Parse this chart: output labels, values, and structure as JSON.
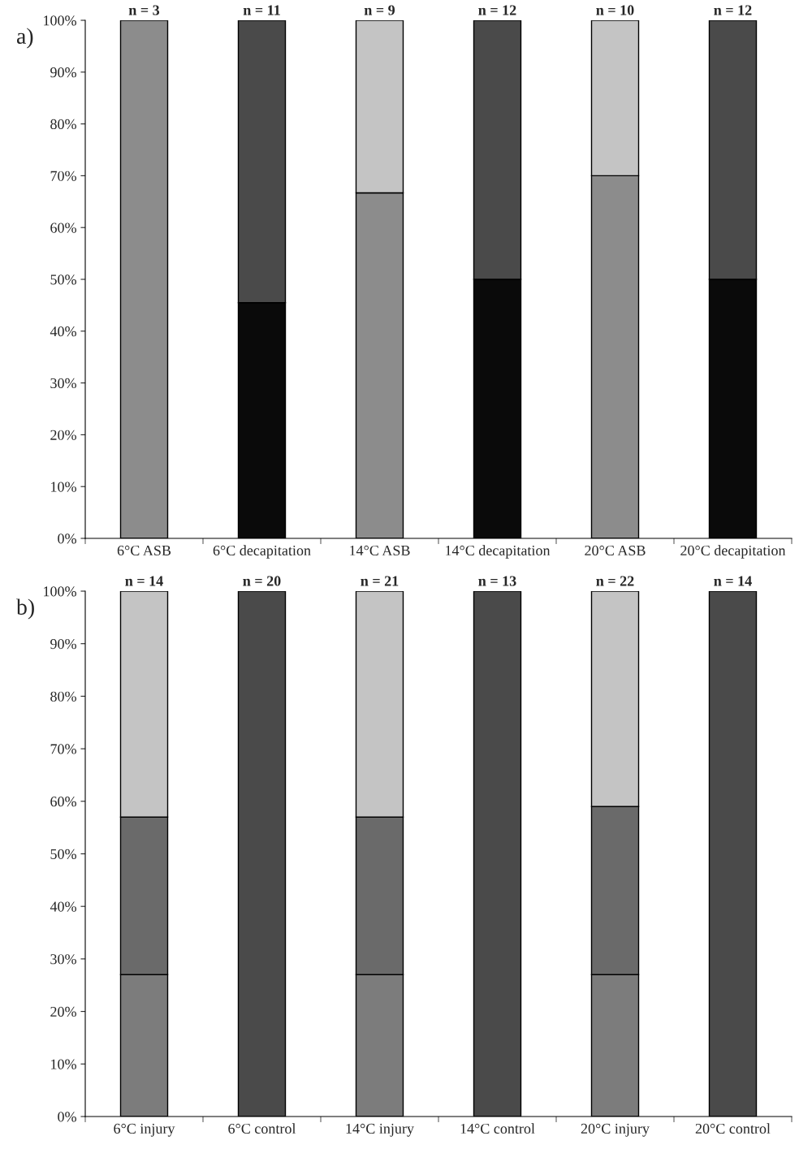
{
  "chart_data": [
    {
      "type": "bar",
      "title": "a)",
      "stacked": true,
      "categories": [
        "6°C ASB",
        "6°C decapitation",
        "14°C ASB",
        "14°C decapitation",
        "20°C ASB",
        "20°C decapitation"
      ],
      "series": [
        {
          "color": "#8c8c8c",
          "values": [
            100,
            0,
            66.7,
            0,
            70,
            0
          ]
        },
        {
          "color": "#0a0a0a",
          "values": [
            0,
            45.5,
            0,
            50,
            0,
            50
          ]
        },
        {
          "color": "#4a4a4a",
          "values": [
            0,
            54.5,
            0,
            50,
            0,
            50
          ]
        },
        {
          "color": "#c4c4c4",
          "values": [
            0,
            0,
            33.3,
            0,
            30,
            0
          ]
        }
      ],
      "ylim": [
        0,
        100
      ],
      "yticks": [
        {
          "value": 0,
          "label": "0%"
        },
        {
          "value": 10,
          "label": "10%"
        },
        {
          "value": 20,
          "label": "20%"
        },
        {
          "value": 30,
          "label": "30%"
        },
        {
          "value": 40,
          "label": "40%"
        },
        {
          "value": 50,
          "label": "50%"
        },
        {
          "value": 60,
          "label": "60%"
        },
        {
          "value": 70,
          "label": "70%"
        },
        {
          "value": 80,
          "label": "80%"
        },
        {
          "value": 90,
          "label": "90%"
        },
        {
          "value": 100,
          "label": "100%"
        }
      ],
      "grid": false,
      "legend": false,
      "annotations": [
        {
          "text": "n = 3",
          "x": "6°C ASB",
          "y": 100
        },
        {
          "text": "n = 11",
          "x": "6°C decapitation",
          "y": 100
        },
        {
          "text": "n = 9",
          "x": "14°C ASB",
          "y": 100
        },
        {
          "text": "n = 12",
          "x": "14°C decapitation",
          "y": 100
        },
        {
          "text": "n = 10",
          "x": "20°C ASB",
          "y": 100
        },
        {
          "text": "n = 12",
          "x": "20°C decapitation",
          "y": 100
        }
      ]
    },
    {
      "type": "bar",
      "title": "b)",
      "stacked": true,
      "categories": [
        "6°C injury",
        "6°C control",
        "14°C injury",
        "14°C control",
        "20°C injury",
        "20°C control"
      ],
      "series": [
        {
          "color": "#7c7c7c",
          "values": [
            27,
            0,
            27,
            0,
            27,
            0
          ]
        },
        {
          "color": "#6a6a6a",
          "values": [
            30,
            0,
            30,
            0,
            32,
            0
          ]
        },
        {
          "color": "#c4c4c4",
          "values": [
            43,
            0,
            43,
            0,
            41,
            0
          ]
        },
        {
          "color": "#4a4a4a",
          "values": [
            0,
            100,
            0,
            100,
            0,
            100
          ]
        }
      ],
      "ylim": [
        0,
        100
      ],
      "yticks": [
        {
          "value": 0,
          "label": "0%"
        },
        {
          "value": 10,
          "label": "10%"
        },
        {
          "value": 20,
          "label": "20%"
        },
        {
          "value": 30,
          "label": "30%"
        },
        {
          "value": 40,
          "label": "40%"
        },
        {
          "value": 50,
          "label": "50%"
        },
        {
          "value": 60,
          "label": "60%"
        },
        {
          "value": 70,
          "label": "70%"
        },
        {
          "value": 80,
          "label": "80%"
        },
        {
          "value": 90,
          "label": "90%"
        },
        {
          "value": 100,
          "label": "100%"
        }
      ],
      "grid": false,
      "legend": false,
      "annotations": [
        {
          "text": "n = 14",
          "x": "6°C injury",
          "y": 100
        },
        {
          "text": "n = 20",
          "x": "6°C control",
          "y": 100
        },
        {
          "text": "n = 21",
          "x": "14°C injury",
          "y": 100
        },
        {
          "text": "n = 13",
          "x": "14°C control",
          "y": 100
        },
        {
          "text": "n = 22",
          "x": "20°C injury",
          "y": 100
        },
        {
          "text": "n = 14",
          "x": "20°C control",
          "y": 100
        }
      ]
    }
  ]
}
